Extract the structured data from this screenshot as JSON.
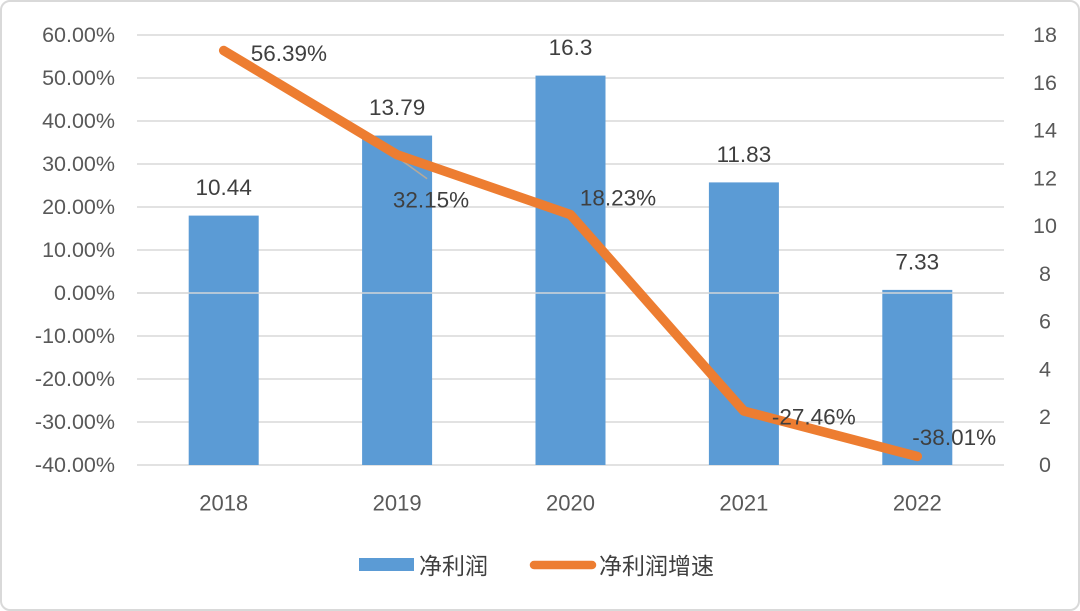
{
  "chart_data": {
    "type": "bar",
    "subtype": "combo bar+line, dual axis",
    "title": "",
    "categories": [
      "2018",
      "2019",
      "2020",
      "2021",
      "2022"
    ],
    "series": [
      {
        "name": "净利润",
        "chart_type": "bar",
        "axis": "right",
        "values": [
          10.44,
          13.79,
          16.3,
          11.83,
          7.33
        ],
        "data_labels": [
          "10.44",
          "13.79",
          "16.3",
          "11.83",
          "7.33"
        ],
        "color": "#5B9BD5"
      },
      {
        "name": "净利润增速",
        "chart_type": "line",
        "axis": "left",
        "values": [
          56.39,
          32.15,
          18.23,
          -27.46,
          -38.01
        ],
        "data_labels": [
          "56.39%",
          "32.15%",
          "18.23%",
          "-27.46%",
          "-38.01%"
        ],
        "color": "#ED7D31"
      }
    ],
    "left_axis": {
      "min": -40,
      "max": 60,
      "step": 10,
      "unit": "%",
      "tick_labels": [
        "60.00%",
        "50.00%",
        "40.00%",
        "30.00%",
        "20.00%",
        "10.00%",
        "0.00%",
        "-10.00%",
        "-20.00%",
        "-30.00%",
        "-40.00%"
      ]
    },
    "right_axis": {
      "min": 0,
      "max": 18,
      "step": 2,
      "tick_labels": [
        "18",
        "16",
        "14",
        "12",
        "10",
        "8",
        "6",
        "4",
        "2",
        "0"
      ]
    },
    "grid": true,
    "legend": {
      "position": "bottom",
      "items": [
        {
          "label": "净利润",
          "swatch": "bar",
          "color": "#5B9BD5"
        },
        {
          "label": "净利润增速",
          "swatch": "line",
          "color": "#ED7D31"
        }
      ]
    }
  },
  "colors": {
    "bar": "#5B9BD5",
    "line": "#ED7D31",
    "gridline": "#D9D9D9",
    "axis_text": "#595959",
    "label_text": "#3F3F3F",
    "leader_line": "#B5A99A",
    "card_border": "#D9D9D9",
    "background": "#FFFFFF"
  }
}
